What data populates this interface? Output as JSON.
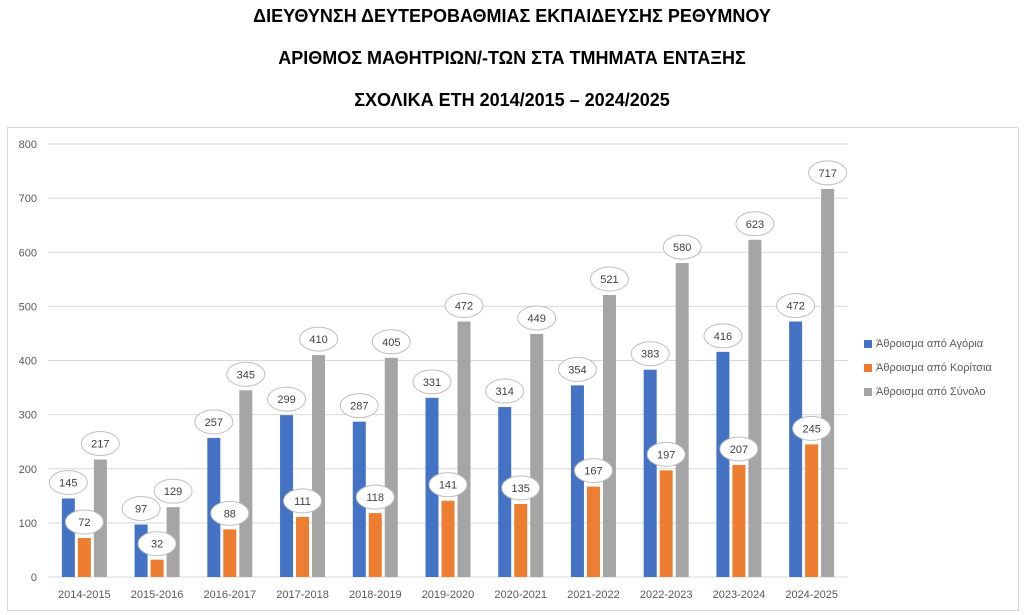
{
  "titles": [
    "ΔΙΕΥΘΥΝΣΗ ΔΕΥΤΕΡΟΒΑΘΜΙΑΣ ΕΚΠΑΙΔΕΥΣΗΣ ΡΕΘΥΜΝΟΥ",
    "ΑΡΙΘΜΟΣ ΜΑΘΗΤΡΙΩΝ/-ΤΩΝ ΣΤΑ ΤΜΗΜΑΤΑ ΕΝΤΑΞΗΣ",
    "ΣΧΟΛΙΚΑ ΕΤΗ 2014/2015 – 2024/2025"
  ],
  "chart_data": {
    "type": "bar",
    "title": "ΔΙΕΥΘΥΝΣΗ ΔΕΥΤΕΡΟΒΑΘΜΙΑΣ ΕΚΠΑΙΔΕΥΣΗΣ ΡΕΘΥΜΝΟΥ / ΑΡΙΘΜΟΣ ΜΑΘΗΤΡΙΩΝ/-ΤΩΝ ΣΤΑ ΤΜΗΜΑΤΑ ΕΝΤΑΞΗΣ / ΣΧΟΛΙΚΑ ΕΤΗ 2014/2015 – 2024/2025",
    "xlabel": "",
    "ylabel": "",
    "ylim": [
      0,
      800
    ],
    "yticks": [
      0,
      100,
      200,
      300,
      400,
      500,
      600,
      700,
      800
    ],
    "grid": true,
    "legend_position": "right",
    "categories": [
      "2014-2015",
      "2015-2016",
      "2016-2017",
      "2017-2018",
      "2018-2019",
      "2019-2020",
      "2020-2021",
      "2021-2022",
      "2022-2023",
      "2023-2024",
      "2024-2025"
    ],
    "series": [
      {
        "name": "Άθροισμα από Αγόρια",
        "color": "#4472c4",
        "values": [
          145,
          97,
          257,
          299,
          287,
          331,
          314,
          354,
          383,
          416,
          472
        ]
      },
      {
        "name": "Άθροισμα από Κορίτσια",
        "color": "#ed7d31",
        "values": [
          72,
          32,
          88,
          111,
          118,
          141,
          135,
          167,
          197,
          207,
          245
        ]
      },
      {
        "name": "Άθροισμα από Σύνολο",
        "color": "#a5a5a5",
        "values": [
          217,
          129,
          345,
          410,
          405,
          472,
          449,
          521,
          580,
          623,
          717
        ]
      }
    ]
  }
}
